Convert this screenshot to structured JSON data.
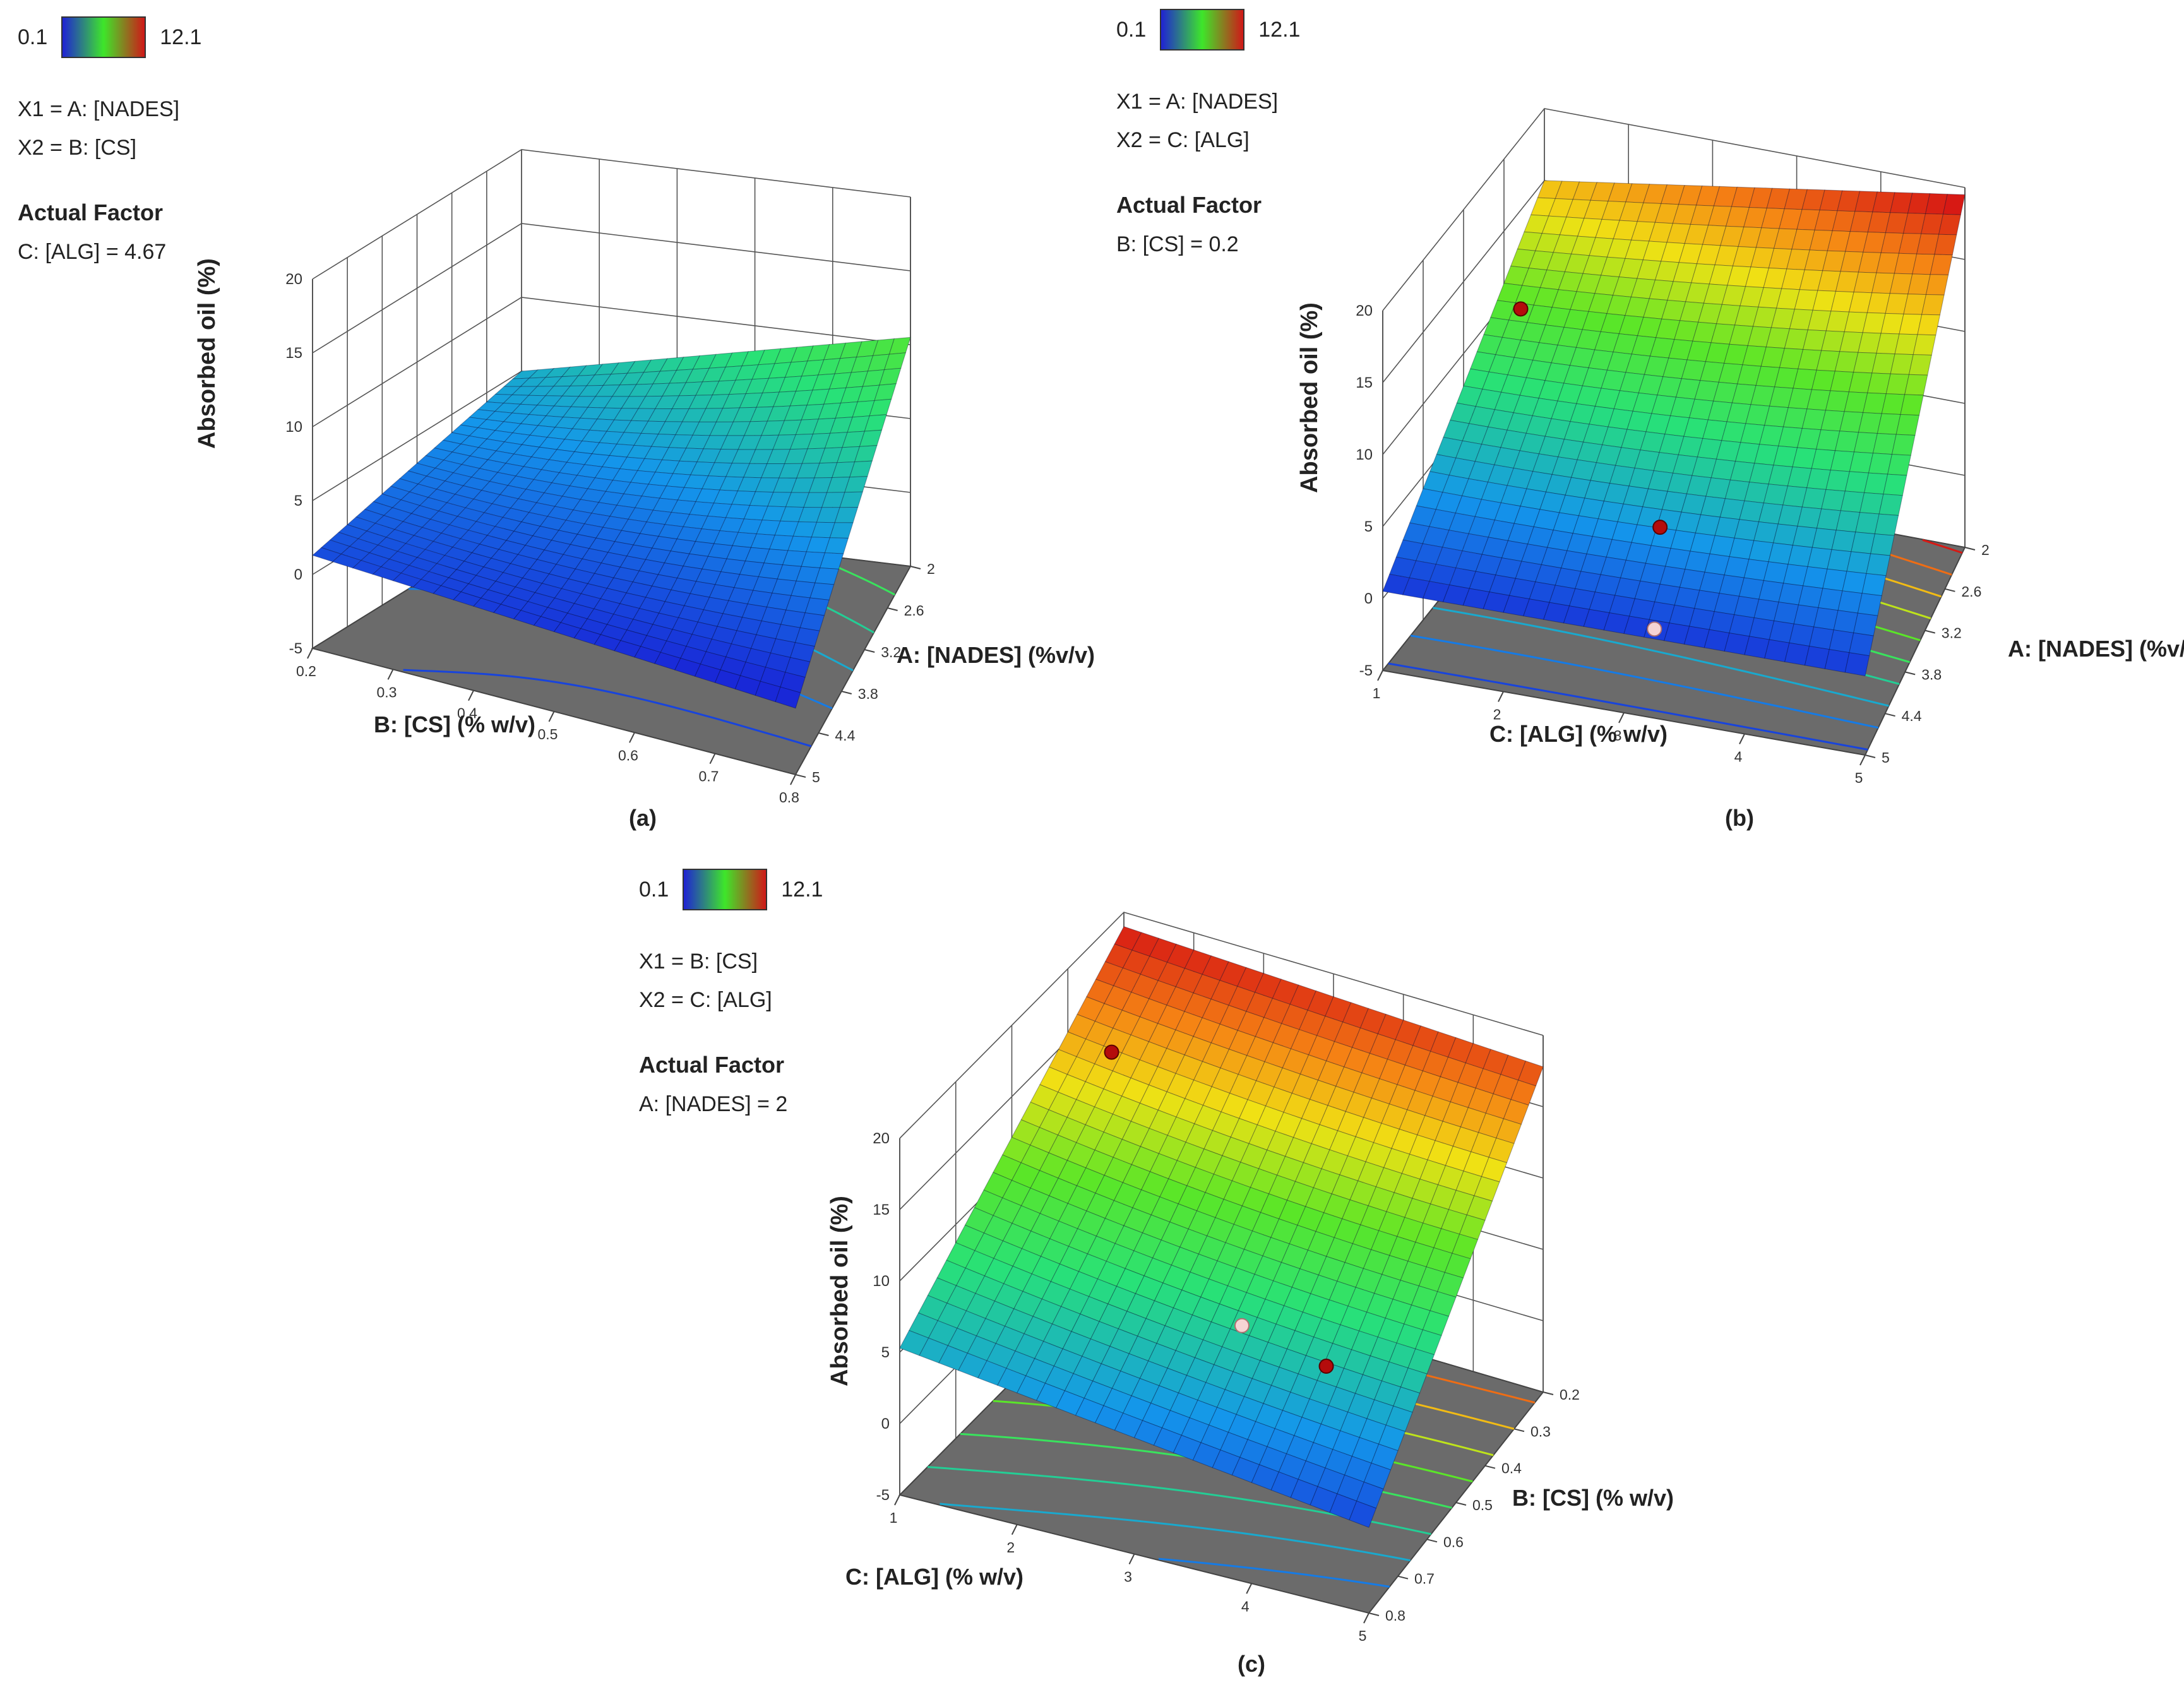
{
  "colors": {
    "low": "#1f22d4",
    "mid": "#3ee62a",
    "high": "#d01818",
    "floor": "#6b6b6b"
  },
  "chart_data": [
    {
      "id": "a",
      "type": "surface3d",
      "caption": "(a)",
      "legend_min": "0.1",
      "legend_max": "12.1",
      "x1_label": "X1 = A: [NADES]",
      "x2_label": "X2 = B: [CS]",
      "actual_factor_title": "Actual Factor",
      "actual_factor": "C: [ALG] = 4.67",
      "zlabel": "Absorbed oil (%)",
      "zticks": [
        "20",
        "15",
        "10",
        "5",
        "0",
        "-5"
      ],
      "zrange": [
        -5,
        20
      ],
      "left_axis_label": "B: [CS] (% w/v)",
      "left_axis_ticks": [
        "0.2",
        "0.3",
        "0.4",
        "0.5",
        "0.6",
        "0.7",
        "0.8"
      ],
      "right_axis_label": "A: [NADES] (%v/v)",
      "right_axis_ticks": [
        "2",
        "2.6",
        "3.2",
        "3.8",
        "4.4",
        "5"
      ],
      "corner_values": {
        "back": 5.0,
        "left": 1.3,
        "right": 10.5,
        "front": -0.5
      },
      "sag": 2.0,
      "design_points": []
    },
    {
      "id": "b",
      "type": "surface3d",
      "caption": "(b)",
      "legend_min": "0.1",
      "legend_max": "12.1",
      "x1_label": "X1 = A: [NADES]",
      "x2_label": "X2 = C: [ALG]",
      "actual_factor_title": "Actual Factor",
      "actual_factor": "B: [CS] = 0.2",
      "zlabel": "Absorbed oil (%)",
      "zticks": [
        "20",
        "15",
        "10",
        "5",
        "0",
        "-5"
      ],
      "zrange": [
        -5,
        20
      ],
      "left_axis_label": "C: [ALG] (% w/v)",
      "left_axis_ticks": [
        "1",
        "2",
        "3",
        "4",
        "5"
      ],
      "right_axis_label": "A: [NADES] (%v/v)",
      "right_axis_ticks": [
        "2",
        "2.6",
        "3.2",
        "3.8",
        "4.4",
        "5"
      ],
      "corner_values": {
        "back": 15.0,
        "left": 0.5,
        "right": 19.5,
        "front": 0.5
      },
      "sag": 1.0,
      "design_points": [
        {
          "u": 0.02,
          "v": 0.2,
          "z": 9.0,
          "above": true
        },
        {
          "u": 0.45,
          "v": 0.55,
          "z": 1.2,
          "above": true
        },
        {
          "u": 0.55,
          "v": 0.95,
          "z": 0.4,
          "above": false
        }
      ]
    },
    {
      "id": "c",
      "type": "surface3d",
      "caption": "(c)",
      "legend_min": "0.1",
      "legend_max": "12.1",
      "x1_label": "X1 = B: [CS]",
      "x2_label": "X2 = C: [ALG]",
      "actual_factor_title": "Actual Factor",
      "actual_factor": "A: [NADES] = 2",
      "zlabel": "Absorbed oil (%)",
      "zticks": [
        "20",
        "15",
        "10",
        "5",
        "0",
        "-5"
      ],
      "zrange": [
        -5,
        20
      ],
      "left_axis_label": "C: [ALG] (% w/v)",
      "left_axis_ticks": [
        "1",
        "2",
        "3",
        "4",
        "5"
      ],
      "right_axis_label": "B: [CS] (% w/v)",
      "right_axis_ticks": [
        "0.2",
        "0.3",
        "0.4",
        "0.5",
        "0.6",
        "0.7",
        "0.8"
      ],
      "corner_values": {
        "back": 19.0,
        "left": 5.3,
        "right": 17.8,
        "front": 1.0
      },
      "sag": 1.0,
      "design_points": [
        {
          "u": 0.05,
          "v": 0.15,
          "z": 13.0,
          "above": true
        },
        {
          "u": 0.75,
          "v": 0.6,
          "z": 4.0,
          "above": true
        },
        {
          "u": 0.45,
          "v": 0.35,
          "z": 0.4,
          "above": false
        }
      ]
    }
  ]
}
